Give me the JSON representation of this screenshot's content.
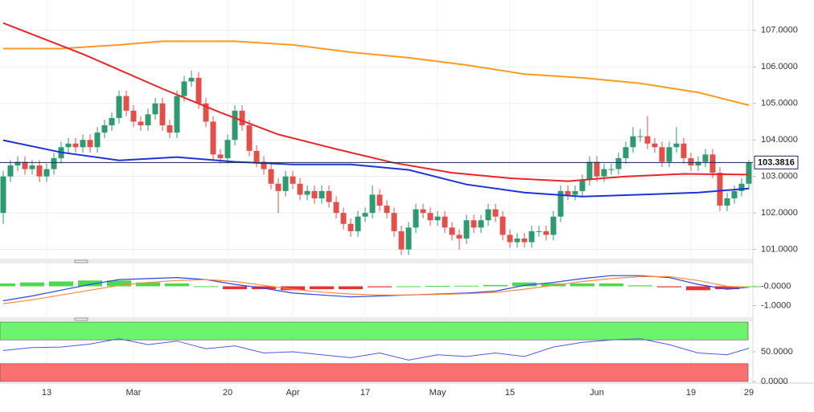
{
  "chart_data": [
    {
      "type": "candlestick",
      "open": [
        102.0,
        103.0,
        103.3,
        103.4,
        103.2,
        103.3,
        103.0,
        103.2,
        103.5,
        103.8,
        103.9,
        103.8,
        104.0,
        103.8,
        104.2,
        104.4,
        104.6,
        105.2,
        104.8,
        104.5,
        104.4,
        104.7,
        105.0,
        104.4,
        104.2,
        105.2,
        105.6,
        105.7,
        105.0,
        104.5,
        103.6,
        103.5,
        104.0,
        104.8,
        104.4,
        103.7,
        103.4,
        103.2,
        102.8,
        102.6,
        103.0,
        102.8,
        102.5,
        102.6,
        102.4,
        102.6,
        102.3,
        102.0,
        101.7,
        101.5,
        101.9,
        102.0,
        102.5,
        102.2,
        102.0,
        101.5,
        101.0,
        101.6,
        102.1,
        102.0,
        101.8,
        101.9,
        101.6,
        101.4,
        101.3,
        101.8,
        101.6,
        101.8,
        102.1,
        101.9,
        101.4,
        101.2,
        101.3,
        101.2,
        101.5,
        101.5,
        101.4,
        101.9,
        102.6,
        102.5,
        102.6,
        102.9,
        103.4,
        103.0,
        103.2,
        103.2,
        103.5,
        103.8,
        104.1,
        104.1,
        103.9,
        103.8,
        103.4,
        103.8,
        103.9,
        103.5,
        103.3,
        103.4,
        103.6,
        103.1,
        102.2,
        102.4,
        102.6,
        102.8
      ],
      "high": [
        103.15,
        103.45,
        103.55,
        103.55,
        103.45,
        103.45,
        103.35,
        103.65,
        103.95,
        104.05,
        104.05,
        104.15,
        104.15,
        104.35,
        104.55,
        104.75,
        105.35,
        105.35,
        104.95,
        104.65,
        104.85,
        105.15,
        105.15,
        104.55,
        105.35,
        105.75,
        105.9,
        105.85,
        105.15,
        104.65,
        103.75,
        104.15,
        104.95,
        104.95,
        104.55,
        103.85,
        103.55,
        103.35,
        102.95,
        103.15,
        103.15,
        102.95,
        102.75,
        102.75,
        102.75,
        102.75,
        102.45,
        102.15,
        101.85,
        102.05,
        102.15,
        102.75,
        102.65,
        102.35,
        102.15,
        101.65,
        101.75,
        102.25,
        102.25,
        102.15,
        102.05,
        102.05,
        101.75,
        101.55,
        101.95,
        101.95,
        101.95,
        102.25,
        102.25,
        102.05,
        101.55,
        101.45,
        101.45,
        101.65,
        101.65,
        101.65,
        102.05,
        102.75,
        102.75,
        102.75,
        103.05,
        103.55,
        103.55,
        103.35,
        103.35,
        103.65,
        103.95,
        104.35,
        104.3,
        104.65,
        104.05,
        103.95,
        103.95,
        104.35,
        104.05,
        103.65,
        103.55,
        103.75,
        103.75,
        103.25,
        102.55,
        102.75,
        102.95,
        103.45
      ],
      "low": [
        101.7,
        102.85,
        103.15,
        103.05,
        103.05,
        102.85,
        102.85,
        103.05,
        103.35,
        103.65,
        103.65,
        103.65,
        103.65,
        103.65,
        104.05,
        104.25,
        104.45,
        104.65,
        104.35,
        104.25,
        104.25,
        104.55,
        104.25,
        104.05,
        104.05,
        105.05,
        105.45,
        104.85,
        104.35,
        103.45,
        103.35,
        103.35,
        103.85,
        104.25,
        103.55,
        103.25,
        103.05,
        102.65,
        102.0,
        102.45,
        102.65,
        102.35,
        102.35,
        102.25,
        102.25,
        102.15,
        101.85,
        101.55,
        101.35,
        101.35,
        101.75,
        101.85,
        102.05,
        101.85,
        101.35,
        100.85,
        100.85,
        101.45,
        101.85,
        101.65,
        101.65,
        101.45,
        101.25,
        101.0,
        101.15,
        101.45,
        101.45,
        101.65,
        101.75,
        101.25,
        101.05,
        101.05,
        101.05,
        101.05,
        101.35,
        101.25,
        101.25,
        101.75,
        102.35,
        102.35,
        102.45,
        102.75,
        102.85,
        102.85,
        103.05,
        103.05,
        103.35,
        103.65,
        103.95,
        103.75,
        103.65,
        103.25,
        103.25,
        103.65,
        103.35,
        103.15,
        103.15,
        103.25,
        102.95,
        102.05,
        102.05,
        102.25,
        102.45,
        102.65
      ],
      "close": [
        103.0,
        103.3,
        103.4,
        103.2,
        103.3,
        103.0,
        103.2,
        103.5,
        103.8,
        103.9,
        103.8,
        104.0,
        103.8,
        104.2,
        104.4,
        104.6,
        105.2,
        104.8,
        104.5,
        104.4,
        104.7,
        105.0,
        104.4,
        104.2,
        105.2,
        105.6,
        105.7,
        105.0,
        104.5,
        103.6,
        103.5,
        104.0,
        104.8,
        104.4,
        103.7,
        103.4,
        103.2,
        102.8,
        102.6,
        103.0,
        102.8,
        102.5,
        102.6,
        102.4,
        102.6,
        102.3,
        102.0,
        101.7,
        101.5,
        101.9,
        102.0,
        102.5,
        102.2,
        102.0,
        101.5,
        101.0,
        101.6,
        102.1,
        102.0,
        101.8,
        101.9,
        101.6,
        101.4,
        101.3,
        101.8,
        101.6,
        101.8,
        102.1,
        101.9,
        101.4,
        101.2,
        101.3,
        101.2,
        101.5,
        101.5,
        101.4,
        101.9,
        102.6,
        102.5,
        102.6,
        102.9,
        103.4,
        103.0,
        103.2,
        103.2,
        103.5,
        103.8,
        104.1,
        104.1,
        103.9,
        103.8,
        103.4,
        103.8,
        103.9,
        103.5,
        103.3,
        103.4,
        103.6,
        103.1,
        102.2,
        102.4,
        102.6,
        102.8,
        103.38
      ],
      "up_color": "#2f9a70",
      "down_color": "#e2504c",
      "ylim": [
        100.75,
        107.83
      ],
      "yticks": [
        {
          "value": 101,
          "label": "101.0000"
        },
        {
          "value": 102,
          "label": "102.0000"
        },
        {
          "value": 103,
          "label": "103.0000"
        },
        {
          "value": 104,
          "label": "104.0000"
        },
        {
          "value": 105,
          "label": "105.0000"
        },
        {
          "value": 106,
          "label": "106.0000"
        },
        {
          "value": 107,
          "label": "107.0000"
        }
      ],
      "xticks": [
        {
          "value": 6,
          "label": "13"
        },
        {
          "value": 18,
          "label": "Mar"
        },
        {
          "value": 31,
          "label": "20"
        },
        {
          "value": 40,
          "label": "Apr"
        },
        {
          "value": 50,
          "label": "17"
        },
        {
          "value": 60,
          "label": "May"
        },
        {
          "value": 70,
          "label": "15"
        },
        {
          "value": 82,
          "label": "Jun"
        },
        {
          "value": 95,
          "label": "19"
        },
        {
          "value": 103,
          "label": "29"
        }
      ],
      "grid": true,
      "overlays": [
        {
          "color": "#ff9a1f",
          "x": [
            0,
            8,
            16,
            22,
            32,
            40,
            48,
            56,
            64,
            72,
            80,
            88,
            96,
            103
          ],
          "values": [
            106.5,
            106.5,
            106.6,
            106.7,
            106.7,
            106.6,
            106.4,
            106.25,
            106.05,
            105.8,
            105.7,
            105.55,
            105.3,
            104.95
          ]
        },
        {
          "color": "#e8262b",
          "x": [
            0,
            11,
            22,
            30,
            38,
            46,
            54,
            62,
            70,
            78,
            86,
            94,
            103
          ],
          "values": [
            107.2,
            106.35,
            105.4,
            104.75,
            104.15,
            103.75,
            103.37,
            103.1,
            102.95,
            102.87,
            103.0,
            103.07,
            103.05
          ]
        },
        {
          "color": "#1d35d6",
          "x": [
            0,
            8,
            16,
            24,
            32,
            40,
            48,
            56,
            64,
            72,
            80,
            88,
            96,
            103
          ],
          "values": [
            103.99,
            103.66,
            103.44,
            103.53,
            103.4,
            103.33,
            103.33,
            103.18,
            102.78,
            102.56,
            102.45,
            102.5,
            102.56,
            102.67
          ]
        }
      ],
      "last_price": {
        "value": 103.3816,
        "label": "103.3816"
      }
    },
    {
      "type": "macd",
      "x": [
        0,
        4,
        8,
        12,
        16,
        20,
        24,
        28,
        32,
        36,
        40,
        44,
        48,
        52,
        56,
        60,
        64,
        68,
        72,
        76,
        80,
        84,
        88,
        92,
        96,
        100,
        103
      ],
      "series": [
        {
          "color": "#2a48e0",
          "values": [
            -0.75,
            -0.5,
            -0.2,
            0.1,
            0.35,
            0.4,
            0.45,
            0.35,
            0.1,
            -0.1,
            -0.35,
            -0.45,
            -0.55,
            -0.5,
            -0.45,
            -0.4,
            -0.35,
            -0.25,
            0.05,
            0.2,
            0.4,
            0.55,
            0.55,
            0.45,
            0.1,
            -0.15,
            -0.05
          ]
        },
        {
          "color": "#ff8a3d",
          "values": [
            -0.9,
            -0.7,
            -0.45,
            -0.2,
            0.05,
            0.2,
            0.3,
            0.35,
            0.25,
            0.05,
            -0.15,
            -0.3,
            -0.4,
            -0.45,
            -0.45,
            -0.42,
            -0.38,
            -0.32,
            -0.15,
            0.05,
            0.25,
            0.4,
            0.5,
            0.5,
            0.3,
            0.0,
            -0.05
          ]
        }
      ],
      "histogram": {
        "values": [
          0.15,
          0.2,
          0.25,
          0.3,
          0.3,
          0.2,
          0.15,
          0,
          -0.15,
          -0.15,
          -0.2,
          -0.15,
          -0.15,
          -0.05,
          0,
          0.02,
          0.03,
          0.07,
          0.2,
          0.15,
          0.15,
          0.15,
          0.05,
          -0.05,
          -0.2,
          -0.15,
          0
        ],
        "up_color": "#39d639",
        "down_color": "#e41c1c"
      },
      "ylim": [
        -1.6,
        1.1
      ],
      "yticks": [
        {
          "value": 0,
          "label": "-0.0000"
        },
        {
          "value": -1,
          "label": "-1.0000"
        }
      ]
    },
    {
      "type": "rsi",
      "x": [
        0,
        4,
        8,
        12,
        16,
        20,
        24,
        28,
        32,
        36,
        40,
        44,
        48,
        52,
        56,
        60,
        64,
        68,
        72,
        76,
        80,
        84,
        88,
        92,
        96,
        100,
        103
      ],
      "series": [
        {
          "color": "#4a5ce8",
          "values": [
            52,
            57,
            58,
            63,
            72,
            62,
            68,
            55,
            60,
            48,
            50,
            45,
            40,
            48,
            36,
            45,
            42,
            48,
            42,
            58,
            66,
            70,
            72,
            62,
            48,
            45,
            56
          ]
        }
      ],
      "bands": [
        {
          "from": 70,
          "to": 100,
          "color": "#6cf56c"
        },
        {
          "from": 0,
          "to": 30,
          "color": "#f97070"
        }
      ],
      "ylim": [
        0,
        100
      ],
      "yticks": [
        {
          "value": 50,
          "label": "50.0000"
        },
        {
          "value": 0,
          "label": "0.0000"
        }
      ]
    }
  ]
}
